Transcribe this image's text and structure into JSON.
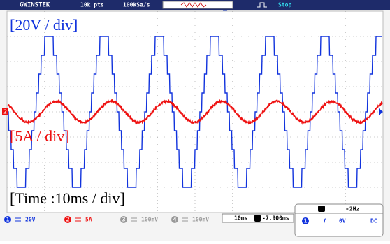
{
  "header": {
    "brand": "GWINSTEK",
    "points": "10k pts",
    "rate": "100kSa/s",
    "status": "Stop"
  },
  "annotations": {
    "voltage": "[20V / div]",
    "current": "[5A / div]",
    "time": "[Time :10ms / div]"
  },
  "channel_marker": "2",
  "footer": {
    "channels": [
      {
        "number": "1",
        "scale": "20V"
      },
      {
        "number": "2",
        "scale": "5A"
      },
      {
        "number": "3",
        "scale": "100mV"
      },
      {
        "number": "4",
        "scale": "100mV"
      }
    ],
    "timebase": "10ms",
    "position": "-7.900ms",
    "frequency": "<2Hz",
    "trigger": {
      "source": "1",
      "slope": "f",
      "level": "0V",
      "coupling": "DC"
    }
  }
}
